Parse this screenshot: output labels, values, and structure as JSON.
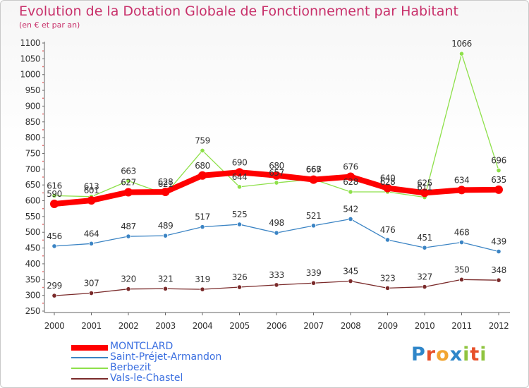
{
  "title": "Evolution de la Dotation Globale de Fonctionnement par Habitant",
  "subtitle": "(en € et par an)",
  "logo": {
    "letters": [
      "P",
      "r",
      "o",
      "x",
      "i",
      "t",
      "i"
    ],
    "colors": [
      "#2f86c9",
      "#e7502a",
      "#f2a531",
      "#2f86c9",
      "#8fc43f",
      "#e7502a",
      "#8fc43f"
    ]
  },
  "chart_data": {
    "type": "line",
    "x": [
      "2000",
      "2001",
      "2002",
      "2003",
      "2004",
      "2005",
      "2006",
      "2007",
      "2008",
      "2009",
      "2010",
      "2011",
      "2012"
    ],
    "ylim": [
      250,
      1100
    ],
    "yticks": [
      250,
      300,
      350,
      400,
      450,
      500,
      550,
      600,
      650,
      700,
      750,
      800,
      850,
      900,
      950,
      1000,
      1050,
      1100
    ],
    "grid": false,
    "legend_position": "bottom-left",
    "series": [
      {
        "name": "MONTCLARD",
        "color": "#ff0000",
        "values": [
          590,
          601,
          627,
          628,
          680,
          690,
          680,
          667,
          676,
          640,
          625,
          634,
          635
        ],
        "labels": [
          "590",
          "601",
          "627",
          "628",
          "680",
          "690",
          "680",
          "667",
          "676",
          "640",
          "625",
          "634",
          "635"
        ]
      },
      {
        "name": "Saint-Préjet-Armandon",
        "color": "#3b84c4",
        "values": [
          456,
          464,
          487,
          489,
          517,
          525,
          498,
          521,
          542,
          476,
          451,
          468,
          439
        ],
        "labels": [
          "456",
          "464",
          "487",
          "489",
          "517",
          "525",
          "498",
          "521",
          "542",
          "476",
          "451",
          "468",
          "439"
        ]
      },
      {
        "name": "Berbezit",
        "color": "#8ee04a",
        "values": [
          616,
          613,
          663,
          621,
          759,
          644,
          657,
          668,
          628,
          628,
          611,
          1066,
          696
        ],
        "labels": [
          "616",
          "613",
          "663",
          "621",
          "759",
          "644",
          "657",
          "668",
          "628",
          "628",
          "611",
          "1066",
          "696"
        ]
      },
      {
        "name": "Vals-le-Chastel",
        "color": "#7a2a2a",
        "values": [
          299,
          307,
          320,
          321,
          319,
          326,
          333,
          339,
          345,
          323,
          327,
          350,
          348
        ],
        "labels": [
          "299",
          "307",
          "320",
          "321",
          "319",
          "326",
          "333",
          "339",
          "345",
          "323",
          "327",
          "350",
          "348"
        ]
      }
    ]
  }
}
